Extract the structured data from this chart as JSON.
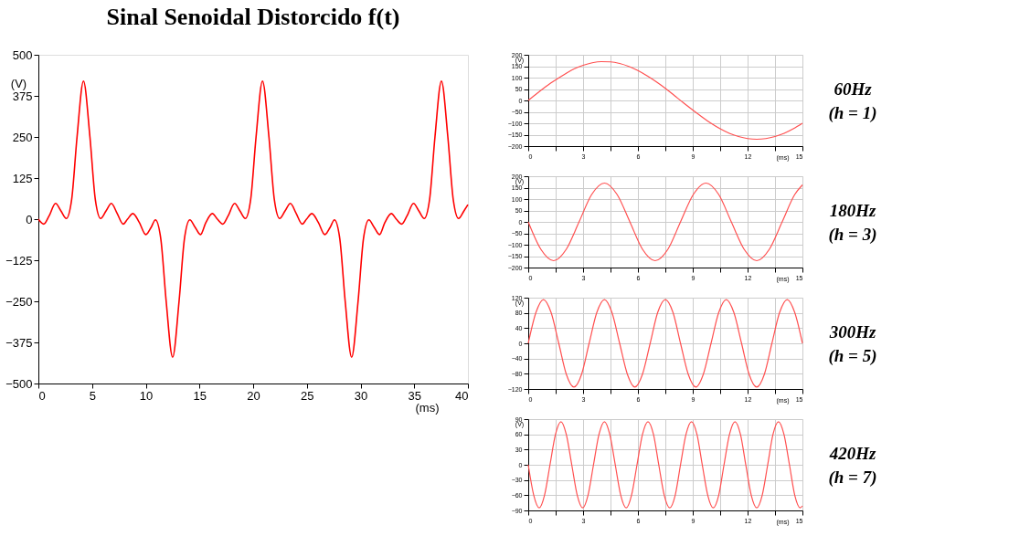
{
  "chart_data": [
    {
      "type": "line",
      "title": "Sinal Senoidal Distorcido f(t)",
      "xlabel": "(ms)",
      "ylabel": "(V)",
      "xlim": [
        0,
        40
      ],
      "ylim": [
        -500,
        500
      ],
      "xticks": [
        0,
        5,
        10,
        15,
        20,
        25,
        30,
        35,
        40
      ],
      "yticks": [
        -500,
        -375,
        -250,
        -125,
        0,
        125,
        250,
        375,
        500
      ],
      "grid": false,
      "series": [
        {
          "color": "#ff0000",
          "x": [
            0,
            0.5,
            1.0,
            1.6,
            2.1,
            2.6,
            3.1,
            3.6,
            4.2,
            4.8,
            5.3,
            5.8,
            6.3,
            6.8,
            7.3,
            7.9,
            8.3,
            8.8,
            9.4,
            10.0,
            10.5,
            10.9,
            11.4,
            11.9,
            12.5,
            13.1,
            13.6,
            14.1,
            14.6,
            15.1,
            15.6,
            16.2,
            16.67,
            17.17,
            17.67,
            18.27,
            18.77,
            19.27,
            19.77,
            20.27,
            20.87,
            21.47,
            21.97,
            22.47,
            22.97,
            23.47,
            23.97,
            24.57,
            24.97,
            25.47,
            26.07,
            26.67,
            27.17,
            27.57,
            28.07,
            28.57,
            29.17,
            29.77,
            30.27,
            30.77,
            31.27,
            31.77,
            32.27,
            32.87,
            33.33,
            33.83,
            34.33,
            34.93,
            35.43,
            35.93,
            36.43,
            36.93,
            37.53,
            38.13,
            38.63,
            39.13,
            39.63,
            40
          ],
          "values": [
            0,
            -15,
            10,
            48,
            25,
            2,
            60,
            250,
            420,
            250,
            60,
            2,
            25,
            48,
            20,
            -15,
            0,
            17,
            -10,
            -47,
            -25,
            -2,
            -60,
            -250,
            -420,
            -250,
            -60,
            -2,
            -25,
            -47,
            -10,
            17,
            0,
            -15,
            10,
            48,
            25,
            2,
            60,
            250,
            420,
            250,
            60,
            2,
            25,
            48,
            20,
            -15,
            0,
            17,
            -10,
            -47,
            -25,
            -2,
            -60,
            -250,
            -420,
            -250,
            -60,
            -2,
            -25,
            -47,
            -10,
            17,
            0,
            -15,
            10,
            48,
            25,
            2,
            60,
            250,
            420,
            250,
            60,
            2,
            25,
            44
          ]
        }
      ]
    },
    {
      "type": "line",
      "xlabel": "(ms)",
      "ylabel": "(V)",
      "xlim": [
        0,
        15
      ],
      "ylim": [
        -200,
        200
      ],
      "xticks": [
        0,
        {
          "value": 1.5,
          "label": null
        },
        3,
        {
          "value": 4.5,
          "label": null
        },
        6,
        {
          "value": 7.5,
          "label": null
        },
        9,
        {
          "value": 10.5,
          "label": null
        },
        12,
        {
          "value": 13.5,
          "label": null
        },
        15
      ],
      "yticks": [
        -200,
        -150,
        -100,
        -50,
        0,
        50,
        100,
        150,
        200
      ],
      "grid": true,
      "annotations": [
        "60Hz",
        "(h = 1)"
      ],
      "series": [
        {
          "color": "#ff5050",
          "x": [
            0,
            0.5,
            1,
            1.5,
            2,
            2.5,
            3,
            3.5,
            4,
            4.5,
            5,
            5.5,
            6,
            6.5,
            7,
            7.5,
            8,
            8.5,
            9,
            9.5,
            10,
            10.5,
            11,
            11.5,
            12,
            12.5,
            13,
            13.5,
            14,
            14.5,
            15
          ],
          "values": [
            0,
            32,
            63,
            90,
            115,
            138,
            154,
            165,
            170,
            169,
            162,
            149,
            131,
            108,
            82,
            53,
            21,
            -11,
            -42,
            -72,
            -100,
            -124,
            -144,
            -158,
            -167,
            -170,
            -167,
            -158,
            -144,
            -124,
            -100
          ]
        }
      ]
    },
    {
      "type": "line",
      "xlabel": "(ms)",
      "ylabel": "(V)",
      "xlim": [
        0,
        15
      ],
      "ylim": [
        -200,
        200
      ],
      "xticks": [
        0,
        {
          "value": 1.5,
          "label": null
        },
        3,
        {
          "value": 4.5,
          "label": null
        },
        6,
        {
          "value": 7.5,
          "label": null
        },
        9,
        {
          "value": 10.5,
          "label": null
        },
        12,
        {
          "value": 13.5,
          "label": null
        },
        15
      ],
      "yticks": [
        -200,
        -150,
        -100,
        -50,
        0,
        50,
        100,
        150,
        200
      ],
      "grid": true,
      "annotations": [
        "180Hz",
        "(h = 3)"
      ],
      "series": [
        {
          "color": "#ff5050",
          "x": [
            0,
            0.69,
            1.39,
            2.08,
            2.78,
            3.47,
            4.17,
            4.86,
            5.56,
            6.25,
            6.94,
            7.64,
            8.33,
            9.03,
            9.72,
            10.42,
            11.11,
            11.81,
            12.5,
            13.19,
            13.89,
            14.58,
            15
          ],
          "values": [
            0,
            -120,
            -170,
            -120,
            0,
            120,
            170,
            120,
            0,
            -120,
            -170,
            -120,
            0,
            120,
            170,
            120,
            0,
            -120,
            -170,
            -120,
            0,
            120,
            162
          ]
        }
      ]
    },
    {
      "type": "line",
      "xlabel": "(ms)",
      "ylabel": "(V)",
      "xlim": [
        0,
        15
      ],
      "ylim": [
        -120,
        120
      ],
      "xticks": [
        0,
        {
          "value": 1.5,
          "label": null
        },
        3,
        {
          "value": 4.5,
          "label": null
        },
        6,
        {
          "value": 7.5,
          "label": null
        },
        9,
        {
          "value": 10.5,
          "label": null
        },
        12,
        {
          "value": 13.5,
          "label": null
        },
        15
      ],
      "yticks": [
        -120,
        -80,
        -40,
        0,
        40,
        80,
        120
      ],
      "grid": true,
      "annotations": [
        "300Hz",
        "(h = 5)"
      ],
      "series": [
        {
          "color": "#ff5050",
          "x": [
            0,
            0.42,
            0.83,
            1.25,
            1.67,
            2.08,
            2.5,
            2.92,
            3.33,
            3.75,
            4.17,
            4.58,
            5,
            5.42,
            5.83,
            6.25,
            6.67,
            7.08,
            7.5,
            7.92,
            8.33,
            8.75,
            9.17,
            9.58,
            10,
            10.42,
            10.83,
            11.25,
            11.67,
            12.08,
            12.5,
            12.92,
            13.33,
            13.75,
            14.17,
            14.58,
            15
          ],
          "values": [
            0,
            81,
            115,
            81,
            0,
            -81,
            -115,
            -81,
            0,
            81,
            115,
            81,
            0,
            -81,
            -115,
            -81,
            0,
            81,
            115,
            81,
            0,
            -81,
            -115,
            -81,
            0,
            81,
            115,
            81,
            0,
            -81,
            -115,
            -81,
            0,
            81,
            115,
            81,
            0
          ]
        }
      ]
    },
    {
      "type": "line",
      "xlabel": "(ms)",
      "ylabel": "(V)",
      "xlim": [
        0,
        15
      ],
      "ylim": [
        -90,
        90
      ],
      "xticks": [
        0,
        {
          "value": 1.5,
          "label": null
        },
        3,
        {
          "value": 4.5,
          "label": null
        },
        6,
        {
          "value": 7.5,
          "label": null
        },
        9,
        {
          "value": 10.5,
          "label": null
        },
        12,
        {
          "value": 13.5,
          "label": null
        },
        15
      ],
      "yticks": [
        -90,
        -60,
        -30,
        0,
        30,
        60,
        90
      ],
      "grid": true,
      "annotations": [
        "420Hz",
        "(h = 7)"
      ],
      "series": [
        {
          "color": "#ff5050",
          "x": [
            0,
            0.3,
            0.6,
            0.89,
            1.19,
            1.49,
            1.79,
            2.08,
            2.38,
            2.68,
            2.98,
            3.27,
            3.57,
            3.87,
            4.17,
            4.46,
            4.76,
            5.06,
            5.36,
            5.65,
            5.95,
            6.25,
            6.55,
            6.85,
            7.14,
            7.44,
            7.74,
            8.04,
            8.33,
            8.63,
            8.93,
            9.23,
            9.52,
            9.82,
            10.12,
            10.42,
            10.71,
            11.01,
            11.31,
            11.61,
            11.9,
            12.2,
            12.5,
            12.8,
            13.1,
            13.39,
            13.69,
            13.99,
            14.29,
            14.58,
            14.88,
            15
          ],
          "values": [
            0,
            -60,
            -85,
            -60,
            0,
            60,
            85,
            60,
            0,
            -60,
            -85,
            -60,
            0,
            60,
            85,
            60,
            0,
            -60,
            -85,
            -60,
            0,
            60,
            85,
            60,
            0,
            -60,
            -85,
            -60,
            0,
            60,
            85,
            60,
            0,
            -60,
            -85,
            -60,
            0,
            60,
            85,
            60,
            0,
            -60,
            -85,
            -60,
            0,
            60,
            85,
            60,
            0,
            -60,
            -85,
            -81
          ]
        }
      ]
    }
  ]
}
